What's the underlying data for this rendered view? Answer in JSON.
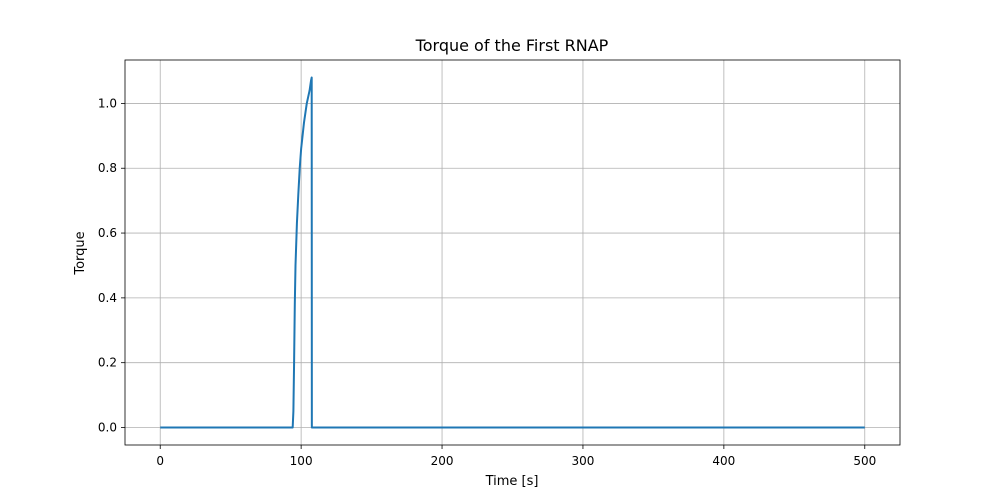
{
  "chart_data": {
    "type": "line",
    "title": "Torque of the First RNAP",
    "xlabel": "Time [s]",
    "ylabel": "Torque",
    "xlim": [
      -25,
      525
    ],
    "ylim": [
      -0.054,
      1.134
    ],
    "xticks": [
      0,
      100,
      200,
      300,
      400,
      500
    ],
    "xtick_labels": [
      "0",
      "100",
      "200",
      "300",
      "400",
      "500"
    ],
    "yticks": [
      0.0,
      0.2,
      0.4,
      0.6,
      0.8,
      1.0
    ],
    "ytick_labels": [
      "0.0",
      "0.2",
      "0.4",
      "0.6",
      "0.8",
      "1.0"
    ],
    "grid": true,
    "series": [
      {
        "color": "#1f77b4",
        "x": [
          0,
          50,
          94,
          94.5,
          95,
          95.5,
          96,
          97,
          98,
          99,
          100,
          101,
          102,
          103,
          104,
          105,
          106,
          107,
          107.5,
          107.6,
          108,
          150,
          200,
          300,
          400,
          500
        ],
        "y": [
          0.0,
          0.0,
          0.0,
          0.05,
          0.2,
          0.38,
          0.5,
          0.63,
          0.72,
          0.8,
          0.86,
          0.9,
          0.94,
          0.97,
          1.0,
          1.02,
          1.04,
          1.07,
          1.08,
          0.0,
          0.0,
          0.0,
          0.0,
          0.0,
          0.0,
          0.0
        ]
      }
    ]
  }
}
